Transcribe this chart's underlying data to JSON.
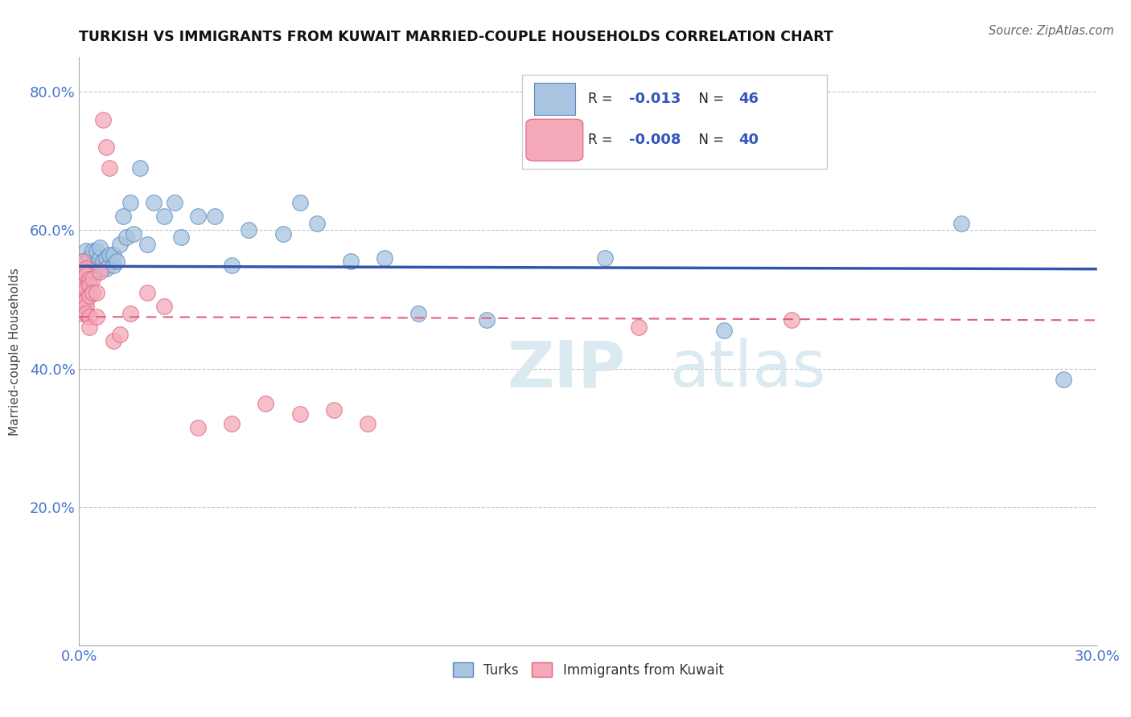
{
  "title": "TURKISH VS IMMIGRANTS FROM KUWAIT MARRIED-COUPLE HOUSEHOLDS CORRELATION CHART",
  "source": "Source: ZipAtlas.com",
  "ylabel": "Married-couple Households",
  "xlim": [
    0.0,
    0.3
  ],
  "ylim": [
    0.0,
    0.85
  ],
  "xticks": [
    0.0,
    0.05,
    0.1,
    0.15,
    0.2,
    0.25,
    0.3
  ],
  "xticklabels": [
    "0.0%",
    "",
    "",
    "",
    "",
    "",
    "30.0%"
  ],
  "yticks": [
    0.0,
    0.2,
    0.4,
    0.6,
    0.8
  ],
  "yticklabels": [
    "",
    "20.0%",
    "40.0%",
    "60.0%",
    "80.0%"
  ],
  "grid_color": "#c8c8c8",
  "background_color": "#ffffff",
  "blue_face_color": "#a8c4e0",
  "blue_edge_color": "#5588bb",
  "pink_face_color": "#f4a8b8",
  "pink_edge_color": "#e06080",
  "blue_line_color": "#3355aa",
  "pink_line_color": "#e06080",
  "r_blue": "-0.013",
  "n_blue": "46",
  "r_pink": "-0.008",
  "n_pink": "40",
  "legend_label_blue": "Turks",
  "legend_label_pink": "Immigrants from Kuwait",
  "watermark_zip": "ZIP",
  "watermark_atlas": "atlas",
  "blue_scatter_x": [
    0.001,
    0.002,
    0.002,
    0.003,
    0.003,
    0.004,
    0.004,
    0.005,
    0.005,
    0.005,
    0.006,
    0.006,
    0.007,
    0.007,
    0.008,
    0.008,
    0.009,
    0.01,
    0.01,
    0.011,
    0.012,
    0.013,
    0.014,
    0.015,
    0.016,
    0.018,
    0.02,
    0.022,
    0.025,
    0.028,
    0.03,
    0.035,
    0.04,
    0.045,
    0.05,
    0.06,
    0.065,
    0.07,
    0.08,
    0.09,
    0.1,
    0.12,
    0.155,
    0.19,
    0.26,
    0.29
  ],
  "blue_scatter_y": [
    0.555,
    0.57,
    0.555,
    0.56,
    0.54,
    0.57,
    0.55,
    0.545,
    0.54,
    0.57,
    0.56,
    0.575,
    0.545,
    0.555,
    0.56,
    0.545,
    0.565,
    0.55,
    0.565,
    0.555,
    0.58,
    0.62,
    0.59,
    0.64,
    0.595,
    0.69,
    0.58,
    0.64,
    0.62,
    0.64,
    0.59,
    0.62,
    0.62,
    0.55,
    0.6,
    0.595,
    0.64,
    0.61,
    0.555,
    0.56,
    0.48,
    0.47,
    0.56,
    0.455,
    0.61,
    0.385
  ],
  "pink_scatter_x": [
    0.001,
    0.001,
    0.001,
    0.001,
    0.001,
    0.001,
    0.001,
    0.002,
    0.002,
    0.002,
    0.002,
    0.002,
    0.002,
    0.002,
    0.003,
    0.003,
    0.003,
    0.003,
    0.003,
    0.004,
    0.004,
    0.005,
    0.005,
    0.006,
    0.007,
    0.008,
    0.009,
    0.01,
    0.012,
    0.015,
    0.02,
    0.025,
    0.035,
    0.045,
    0.055,
    0.065,
    0.075,
    0.085,
    0.165,
    0.21
  ],
  "pink_scatter_y": [
    0.555,
    0.53,
    0.52,
    0.515,
    0.5,
    0.49,
    0.48,
    0.545,
    0.54,
    0.535,
    0.515,
    0.5,
    0.49,
    0.48,
    0.53,
    0.52,
    0.505,
    0.475,
    0.46,
    0.53,
    0.51,
    0.51,
    0.475,
    0.54,
    0.76,
    0.72,
    0.69,
    0.44,
    0.45,
    0.48,
    0.51,
    0.49,
    0.315,
    0.32,
    0.35,
    0.335,
    0.34,
    0.32,
    0.46,
    0.47
  ],
  "blue_trend_x": [
    0.0,
    0.3
  ],
  "blue_trend_y": [
    0.548,
    0.544
  ],
  "pink_trend_x": [
    0.0,
    0.3
  ],
  "pink_trend_y": [
    0.475,
    0.47
  ]
}
